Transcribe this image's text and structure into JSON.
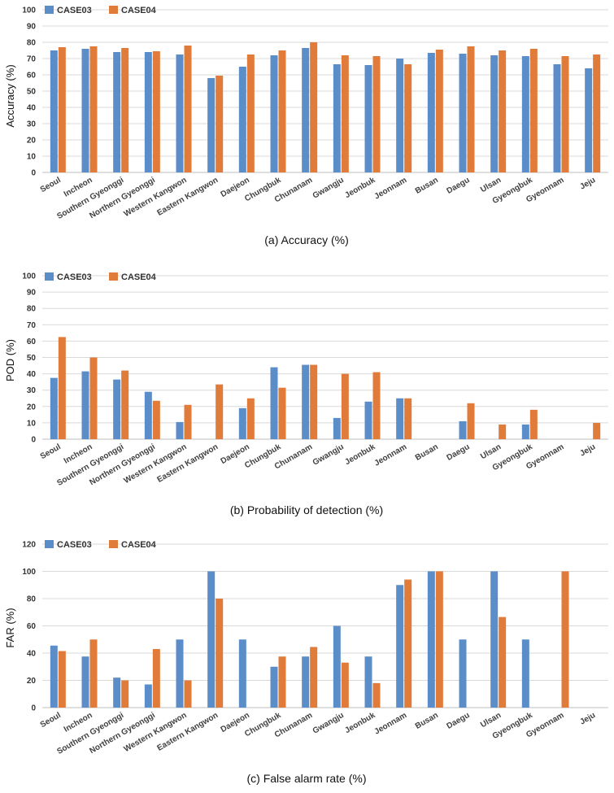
{
  "colors": {
    "case03": "#5b8ec8",
    "case04": "#e07b39"
  },
  "chart_data": [
    {
      "type": "bar",
      "caption": "(a) Accuracy (%)",
      "ylabel": "Accuracy (%)",
      "ylim": [
        0,
        100
      ],
      "yticks": [
        0,
        10,
        20,
        30,
        40,
        50,
        60,
        70,
        80,
        90,
        100
      ],
      "categories": [
        "Seoul",
        "Incheon",
        "Southern Gyeonggi",
        "Northern Gyeonggi",
        "Western Kangwon",
        "Eastern Kangwon",
        "Daejeon",
        "Chungbuk",
        "Chunanam",
        "Gwangju",
        "Jeonbuk",
        "Jeonnam",
        "Busan",
        "Daegu",
        "Ulsan",
        "Gyeongbuk",
        "Gyeonnam",
        "Jeju"
      ],
      "series": [
        {
          "name": "CASE03",
          "values": [
            75,
            76,
            74,
            74,
            72.5,
            58,
            65,
            72,
            76.5,
            66.5,
            66,
            70,
            73.5,
            73,
            72,
            71.5,
            66.5,
            64
          ]
        },
        {
          "name": "CASE04",
          "values": [
            77,
            77.5,
            76.5,
            74.5,
            78,
            59.5,
            72.5,
            75,
            80,
            72,
            71.5,
            66.5,
            75.5,
            77.5,
            75,
            76,
            71.5,
            72.5
          ]
        }
      ]
    },
    {
      "type": "bar",
      "caption": "(b) Probability of detection (%)",
      "ylabel": "POD (%)",
      "ylim": [
        0,
        100
      ],
      "yticks": [
        0,
        10,
        20,
        30,
        40,
        50,
        60,
        70,
        80,
        90,
        100
      ],
      "categories": [
        "Seoul",
        "Incheon",
        "Southern Gyeonggi",
        "Northern Gyeonggi",
        "Western Kangwon",
        "Eastern Kangwon",
        "Daejeon",
        "Chungbuk",
        "Chunanam",
        "Gwangju",
        "Jeonbuk",
        "Jeonnam",
        "Busan",
        "Daegu",
        "Ulsan",
        "Gyeongbuk",
        "Gyeonnam",
        "Jeju"
      ],
      "series": [
        {
          "name": "CASE03",
          "values": [
            37.5,
            41.5,
            36.5,
            29,
            10.5,
            0,
            19,
            44,
            45.5,
            13,
            23,
            25,
            0,
            11,
            0,
            9,
            0,
            0
          ]
        },
        {
          "name": "CASE04",
          "values": [
            62.5,
            50,
            42,
            23.5,
            21,
            33.5,
            25,
            31.5,
            45.5,
            40,
            41,
            25,
            0,
            22,
            9,
            18,
            0,
            10
          ]
        }
      ]
    },
    {
      "type": "bar",
      "caption": "(c) False alarm rate (%)",
      "ylabel": "FAR (%)",
      "ylim": [
        0,
        120
      ],
      "yticks": [
        0,
        20,
        40,
        60,
        80,
        100,
        120
      ],
      "categories": [
        "Seoul",
        "Incheon",
        "Southern Gyeonggi",
        "Northern Gyeonggi",
        "Western Kangwon",
        "Eastern Kangwon",
        "Daejeon",
        "Chungbuk",
        "Chunanam",
        "Gwangju",
        "Jeonbuk",
        "Jeonnam",
        "Busan",
        "Daegu",
        "Ulsan",
        "Gyeongbuk",
        "Gyeonnam",
        "Jeju"
      ],
      "series": [
        {
          "name": "CASE03",
          "values": [
            45.5,
            37.5,
            22,
            17,
            50,
            100,
            50,
            30,
            37.5,
            60,
            37.5,
            90,
            100,
            50,
            100,
            50,
            0,
            0
          ]
        },
        {
          "name": "CASE04",
          "values": [
            41.5,
            50,
            20,
            43,
            20,
            80,
            0,
            37.5,
            44.5,
            33,
            18,
            94,
            100,
            0,
            66.5,
            0,
            100,
            0
          ]
        }
      ]
    }
  ]
}
